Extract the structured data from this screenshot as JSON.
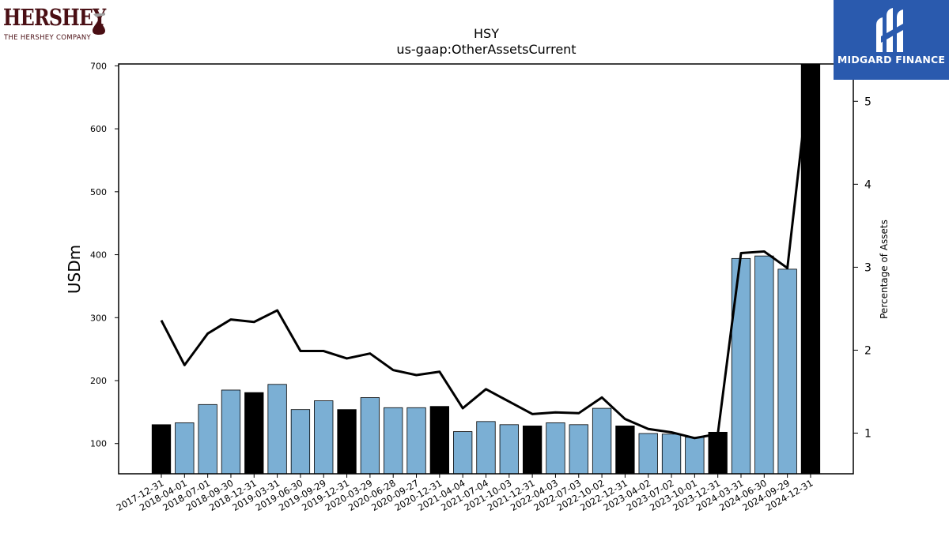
{
  "brand": {
    "company_name": "HERSHEY",
    "company_tagline": "THE HERSHEY COMPANY",
    "company_colors": {
      "primary": "#4a0f14"
    },
    "publisher_name": "MIDGARD FINANCE",
    "publisher_color": "#2a5aae"
  },
  "chart_data": {
    "type": "bar",
    "title": "HSY",
    "subtitle": "us-gaap:OtherAssetsCurrent",
    "ylabel": "USDm",
    "y2label": "Percentage of Assets",
    "ylim": [
      52,
      703
    ],
    "y2lim": [
      0.51,
      5.45
    ],
    "yticks": [
      "100",
      "200",
      "300",
      "400",
      "500",
      "600",
      "700"
    ],
    "y2ticks": [
      "1",
      "2",
      "3",
      "4",
      "5"
    ],
    "grid": false,
    "legend": "none",
    "colors": {
      "annual": "#000000",
      "quarterly": "#7bafd4",
      "line": "#000000"
    },
    "categories": [
      "2017-12-31",
      "2018-04-01",
      "2018-07-01",
      "2018-09-30",
      "2018-12-31",
      "2019-03-31",
      "2019-06-30",
      "2019-09-29",
      "2019-12-31",
      "2020-03-29",
      "2020-06-28",
      "2020-09-27",
      "2020-12-31",
      "2021-04-04",
      "2021-07-04",
      "2021-10-03",
      "2021-12-31",
      "2022-04-03",
      "2022-07-03",
      "2022-10-02",
      "2022-12-31",
      "2023-04-02",
      "2023-07-02",
      "2023-10-01",
      "2023-12-31",
      "2024-03-31",
      "2024-06-30",
      "2024-09-29",
      "2024-12-31"
    ],
    "series": [
      {
        "axis": "left",
        "kind": "bar",
        "values": [
          130,
          133,
          162,
          185,
          181,
          194,
          154,
          168,
          154,
          173,
          157,
          157,
          159,
          119,
          135,
          130,
          128,
          133,
          130,
          156,
          128,
          116,
          115,
          110,
          118,
          394,
          398,
          377,
          703
        ],
        "period": [
          "annual",
          "quarter",
          "quarter",
          "quarter",
          "annual",
          "quarter",
          "quarter",
          "quarter",
          "annual",
          "quarter",
          "quarter",
          "quarter",
          "annual",
          "quarter",
          "quarter",
          "quarter",
          "annual",
          "quarter",
          "quarter",
          "quarter",
          "annual",
          "quarter",
          "quarter",
          "quarter",
          "annual",
          "quarter",
          "quarter",
          "quarter",
          "annual"
        ]
      },
      {
        "axis": "right",
        "kind": "line",
        "values": [
          2.36,
          1.82,
          2.2,
          2.37,
          2.34,
          2.48,
          1.99,
          1.99,
          1.9,
          1.96,
          1.76,
          1.7,
          1.74,
          1.3,
          1.53,
          1.38,
          1.23,
          1.25,
          1.24,
          1.43,
          1.17,
          1.05,
          1.01,
          0.94,
          0.99,
          3.17,
          3.19,
          2.99,
          5.45
        ]
      }
    ]
  }
}
